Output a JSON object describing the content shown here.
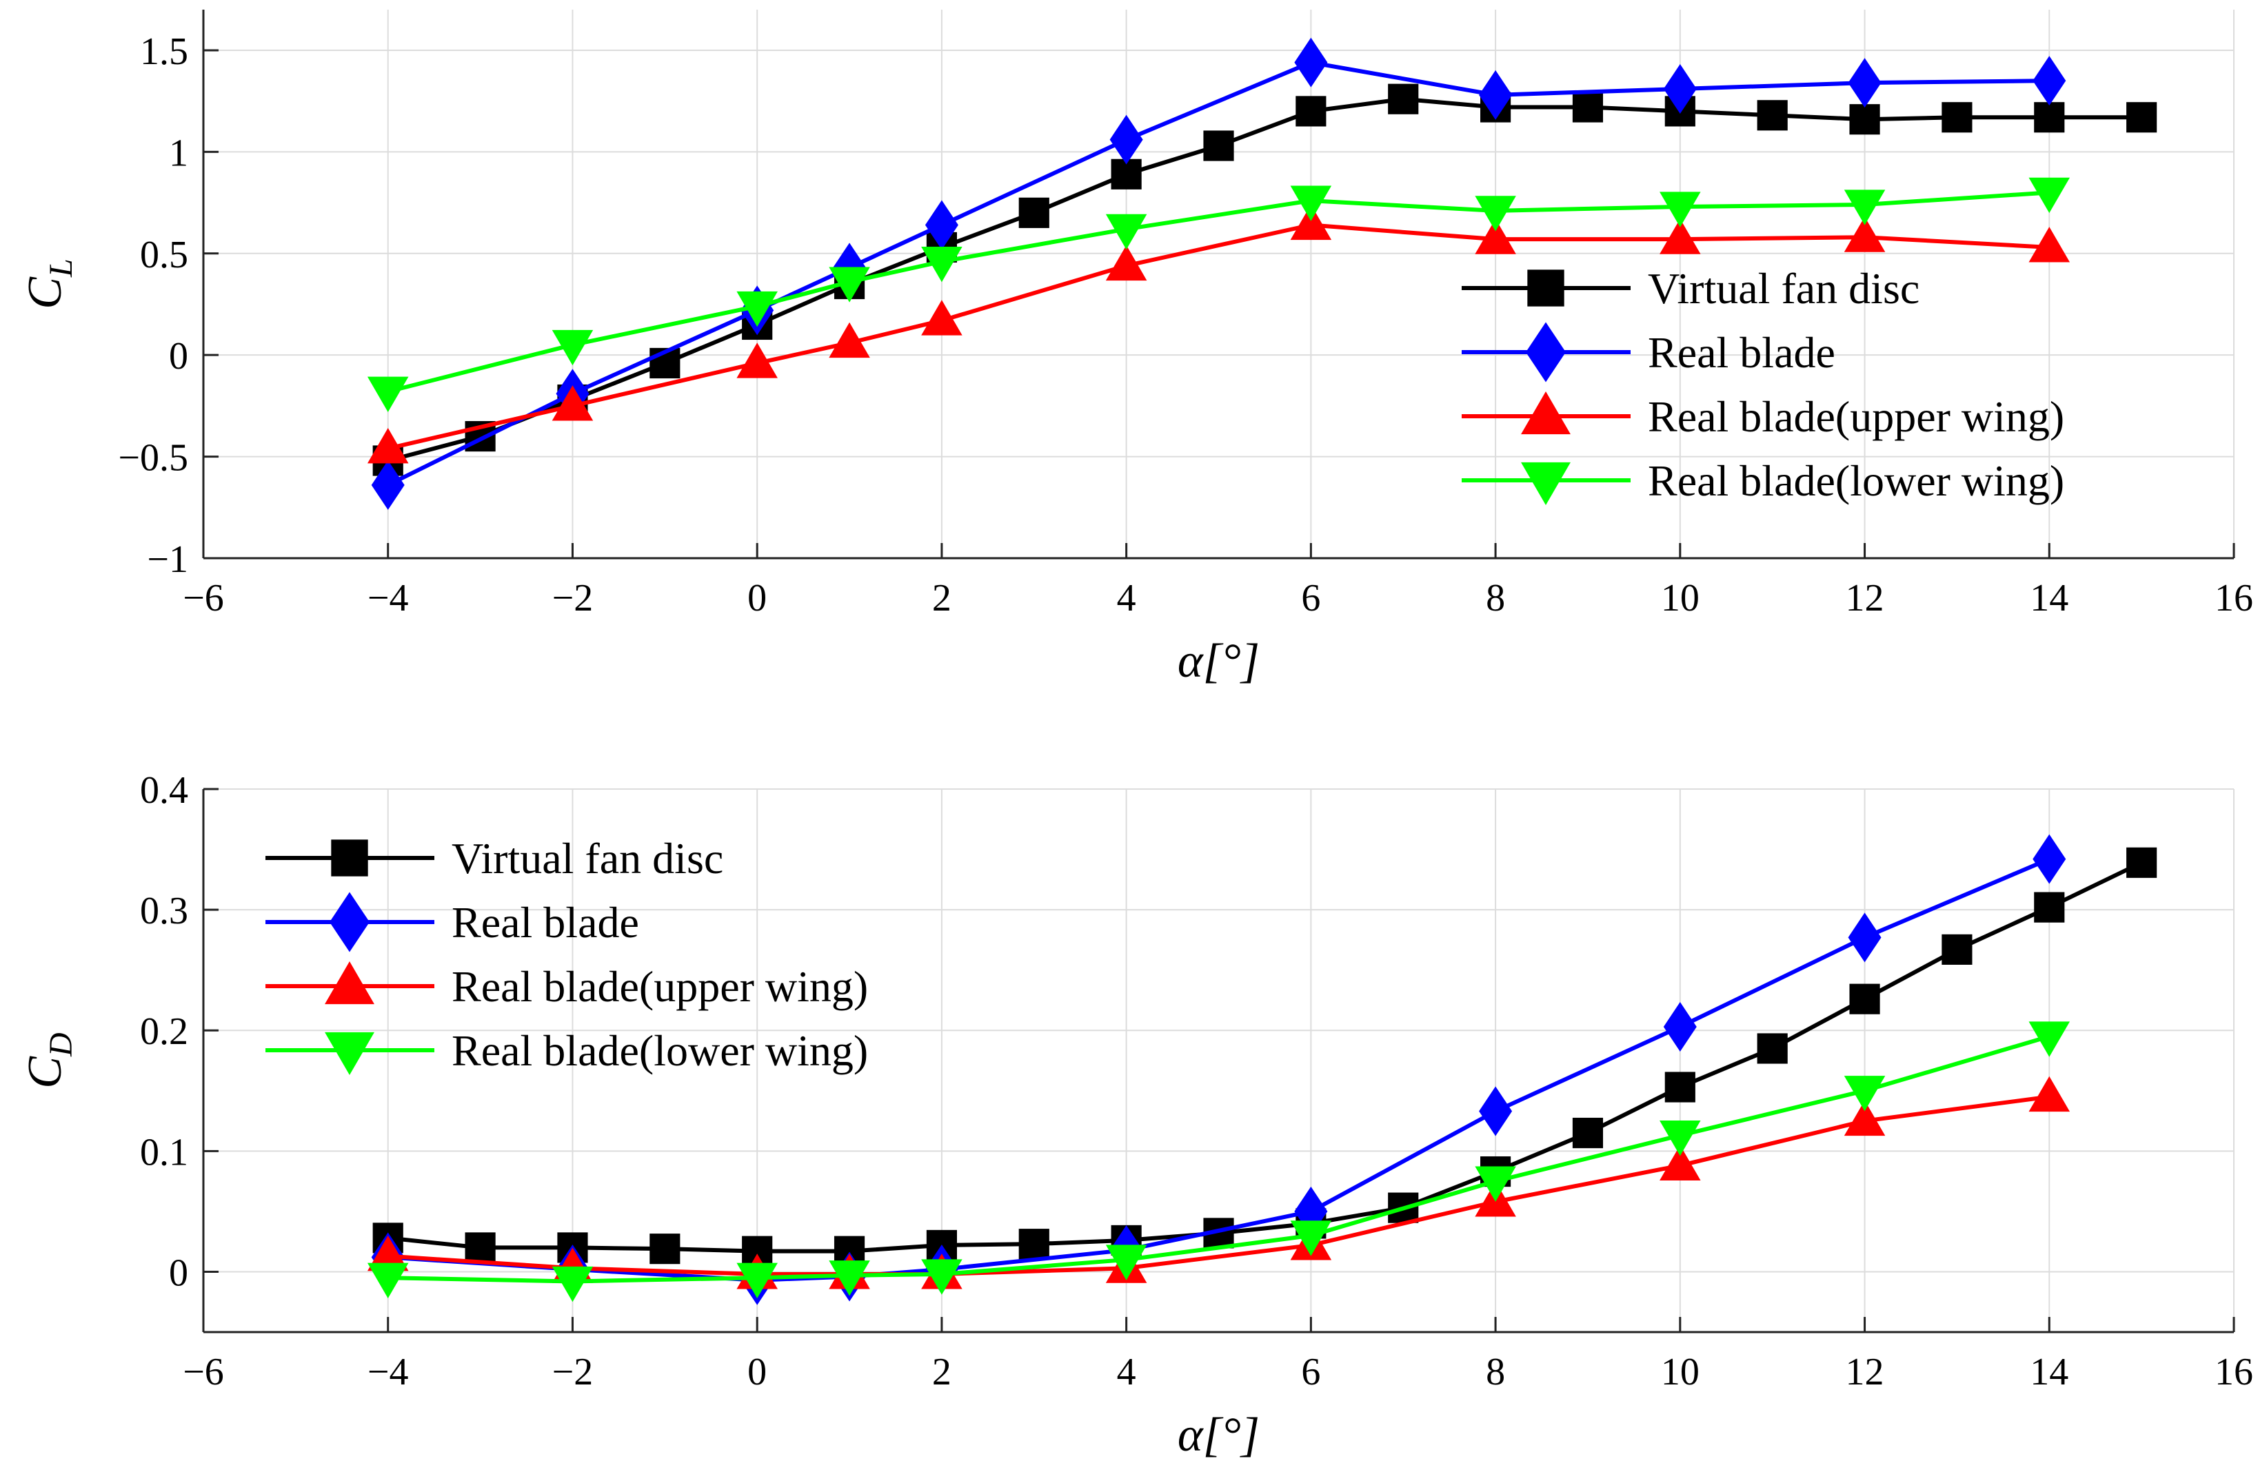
{
  "chart_data": [
    {
      "type": "line",
      "title": "",
      "xlabel": "α[°]",
      "ylabel": "C_L",
      "ylabel_main": "C",
      "ylabel_sub": "L",
      "xlim": [
        -6,
        16
      ],
      "ylim": [
        -1,
        1.7
      ],
      "xticks": [
        -6,
        -4,
        -2,
        0,
        2,
        4,
        6,
        8,
        10,
        12,
        14,
        16
      ],
      "yticks": [
        -1,
        -0.5,
        0,
        0.5,
        1,
        1.5
      ],
      "xtick_labels": [
        "−6",
        "−4",
        "−2",
        "0",
        "2",
        "4",
        "6",
        "8",
        "10",
        "12",
        "14",
        "16"
      ],
      "ytick_labels": [
        "−1",
        "−0.5",
        "0",
        "0.5",
        "1",
        "1.5"
      ],
      "grid": true,
      "legend_position": "right",
      "series": [
        {
          "name": "Virtual fan disc",
          "color": "#000000",
          "marker": "square",
          "x": [
            -4,
            -3,
            -2,
            -1,
            0,
            1,
            2,
            3,
            4,
            5,
            6,
            7,
            8,
            9,
            10,
            11,
            12,
            13,
            14,
            15
          ],
          "y": [
            -0.52,
            -0.4,
            -0.22,
            -0.04,
            0.15,
            0.35,
            0.53,
            0.7,
            0.89,
            1.03,
            1.2,
            1.26,
            1.22,
            1.22,
            1.2,
            1.18,
            1.16,
            1.17,
            1.17,
            1.17
          ]
        },
        {
          "name": "Real blade",
          "color": "#0000ff",
          "marker": "diamond",
          "x": [
            -4,
            -2,
            0,
            1,
            2,
            4,
            6,
            8,
            10,
            12,
            14
          ],
          "y": [
            -0.64,
            -0.19,
            0.22,
            0.43,
            0.64,
            1.06,
            1.44,
            1.28,
            1.31,
            1.34,
            1.35
          ]
        },
        {
          "name": "Real blade(upper wing)",
          "color": "#ff0000",
          "marker": "triangle-up",
          "x": [
            -4,
            -2,
            0,
            1,
            2,
            4,
            6,
            8,
            10,
            12,
            14
          ],
          "y": [
            -0.46,
            -0.25,
            -0.04,
            0.06,
            0.17,
            0.44,
            0.64,
            0.57,
            0.57,
            0.58,
            0.53
          ]
        },
        {
          "name": "Real blade(lower wing)",
          "color": "#00ff00",
          "marker": "triangle-down",
          "x": [
            -4,
            -2,
            0,
            1,
            2,
            4,
            6,
            8,
            10,
            12,
            14
          ],
          "y": [
            -0.18,
            0.05,
            0.24,
            0.36,
            0.46,
            0.62,
            0.76,
            0.71,
            0.73,
            0.74,
            0.8
          ]
        }
      ]
    },
    {
      "type": "line",
      "title": "",
      "xlabel": "α[°]",
      "ylabel": "C_D",
      "ylabel_main": "C",
      "ylabel_sub": "D",
      "xlim": [
        -6,
        16
      ],
      "ylim": [
        -0.05,
        0.4
      ],
      "xticks": [
        -6,
        -4,
        -2,
        0,
        2,
        4,
        6,
        8,
        10,
        12,
        14,
        16
      ],
      "yticks": [
        0,
        0.1,
        0.2,
        0.3,
        0.4
      ],
      "xtick_labels": [
        "−6",
        "−4",
        "−2",
        "0",
        "2",
        "4",
        "6",
        "8",
        "10",
        "12",
        "14",
        "16"
      ],
      "ytick_labels": [
        "0",
        "0.1",
        "0.2",
        "0.3",
        "0.4"
      ],
      "grid": true,
      "legend_position": "top-left",
      "series": [
        {
          "name": "Virtual fan disc",
          "color": "#000000",
          "marker": "square",
          "x": [
            -4,
            -3,
            -2,
            -1,
            0,
            1,
            2,
            3,
            4,
            5,
            6,
            7,
            8,
            9,
            10,
            11,
            12,
            13,
            14,
            15
          ],
          "y": [
            0.028,
            0.02,
            0.02,
            0.019,
            0.017,
            0.017,
            0.022,
            0.023,
            0.026,
            0.032,
            0.04,
            0.053,
            0.083,
            0.115,
            0.153,
            0.185,
            0.226,
            0.267,
            0.302,
            0.339
          ]
        },
        {
          "name": "Real blade",
          "color": "#0000ff",
          "marker": "diamond",
          "x": [
            -4,
            -2,
            0,
            1,
            2,
            4,
            6,
            8,
            10,
            12,
            14
          ],
          "y": [
            0.012,
            0.002,
            -0.007,
            -0.004,
            0.002,
            0.018,
            0.05,
            0.133,
            0.203,
            0.277,
            0.342
          ]
        },
        {
          "name": "Real blade(upper wing)",
          "color": "#ff0000",
          "marker": "triangle-up",
          "x": [
            -4,
            -2,
            0,
            1,
            2,
            4,
            6,
            8,
            10,
            12,
            14
          ],
          "y": [
            0.013,
            0.003,
            -0.002,
            -0.002,
            -0.002,
            0.003,
            0.022,
            0.058,
            0.088,
            0.125,
            0.145
          ]
        },
        {
          "name": "Real blade(lower wing)",
          "color": "#00ff00",
          "marker": "triangle-down",
          "x": [
            -4,
            -2,
            0,
            1,
            2,
            4,
            6,
            8,
            10,
            12,
            14
          ],
          "y": [
            -0.005,
            -0.008,
            -0.005,
            -0.003,
            -0.002,
            0.01,
            0.03,
            0.075,
            0.113,
            0.15,
            0.195
          ]
        }
      ]
    }
  ]
}
